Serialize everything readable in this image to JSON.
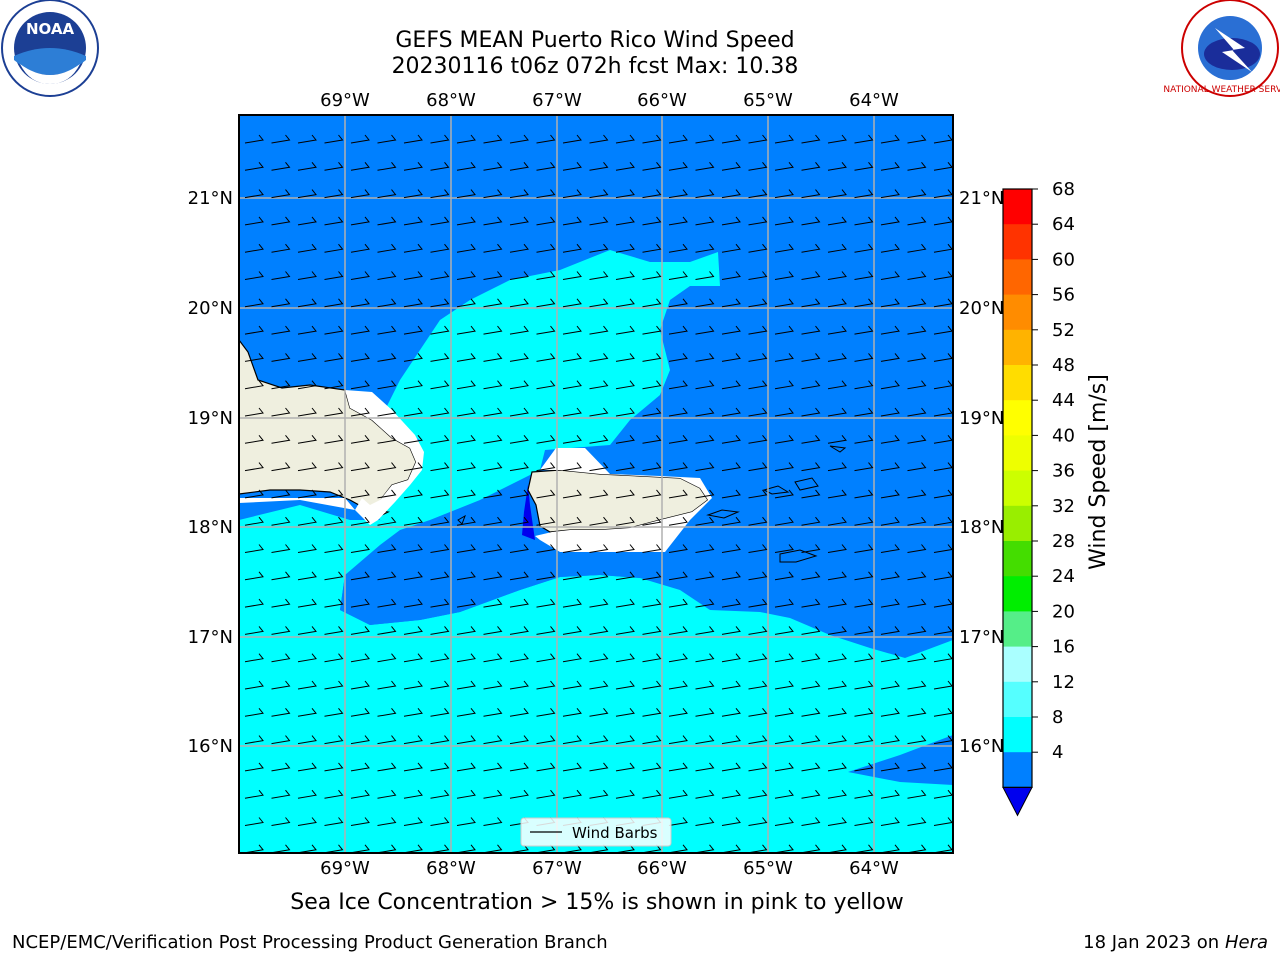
{
  "title": {
    "line1": "GEFS MEAN Puerto Rico Wind Speed",
    "line2": "20230116 t06z 072h fcst   Max: 10.38"
  },
  "map": {
    "lon_labels": [
      "69°W",
      "68°W",
      "67°W",
      "66°W",
      "65°W",
      "64°W"
    ],
    "lat_labels": [
      "21°N",
      "20°N",
      "19°N",
      "18°N",
      "17°N",
      "16°N"
    ],
    "legend_label": "Wind Barbs"
  },
  "colorbar": {
    "label": "Wind Speed [m/s]",
    "ticks": [
      "68",
      "64",
      "60",
      "56",
      "52",
      "48",
      "44",
      "40",
      "36",
      "32",
      "28",
      "24",
      "20",
      "16",
      "12",
      "8",
      "4"
    ],
    "colors": [
      "#ff0000",
      "#ff3300",
      "#ff6600",
      "#ff8c00",
      "#ffb300",
      "#ffdd00",
      "#ffff00",
      "#eeff00",
      "#ccff00",
      "#99ee00",
      "#44dd00",
      "#00ee00",
      "#55ee88",
      "#aaffff",
      "#55ffff",
      "#00ffff",
      "#0080ff"
    ],
    "under_color": "#0000ee"
  },
  "note": "Sea Ice Concentration > 15% is shown in pink to yellow",
  "footer": {
    "left": "NCEP/EMC/Verification Post Processing Product Generation Branch",
    "right_prefix": "18 Jan 2023 on ",
    "right_host": "Hera"
  },
  "logos": {
    "noara_text": "NOAA",
    "nws_text": "NATIONAL WEATHER SERVICE"
  }
}
